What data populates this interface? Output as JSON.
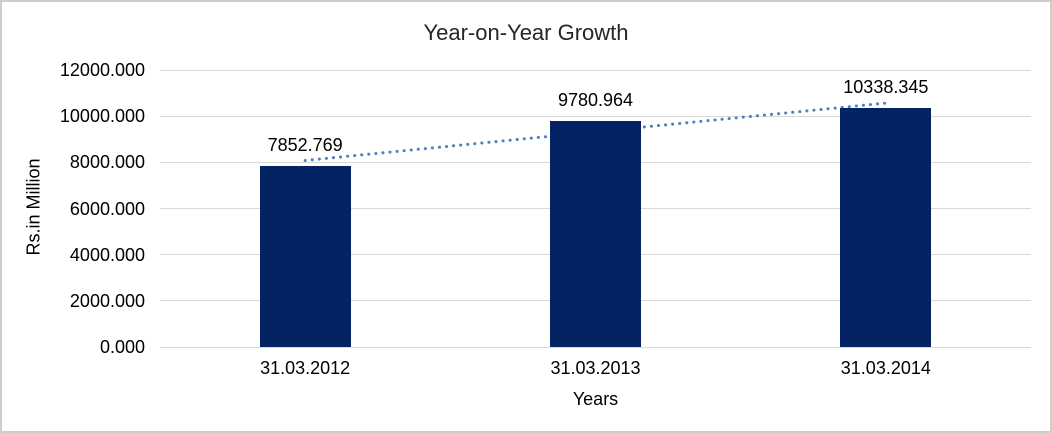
{
  "chart_data": {
    "type": "bar",
    "title": "Year-on-Year Growth",
    "categories": [
      "31.03.2012",
      "31.03.2013",
      "31.03.2014"
    ],
    "values": [
      7852.769,
      9780.964,
      10338.345
    ],
    "data_labels": [
      "7852.769",
      "9780.964",
      "10338.345"
    ],
    "xlabel": "Years",
    "ylabel": "Rs.in Million",
    "ylim": [
      0,
      12000
    ],
    "ytick_labels": [
      "0.000",
      "2000.000",
      "4000.000",
      "6000.000",
      "8000.000",
      "10000.000",
      "12000.000"
    ],
    "grid": true,
    "legend": "none",
    "trendline": {
      "type": "linear",
      "style": "dotted"
    }
  },
  "colors": {
    "bar": "#042364",
    "trendline": "#4f81bd",
    "gridline": "#d9d9d9",
    "title_text": "#262626",
    "axis_text": "#000000",
    "frame_border": "#cdcdcd",
    "background": "#ffffff"
  }
}
